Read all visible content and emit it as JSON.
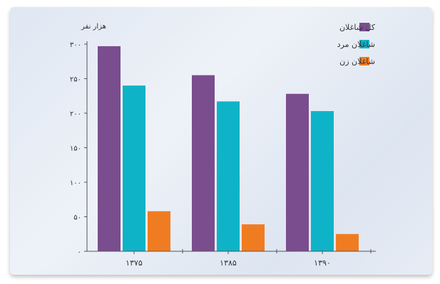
{
  "chart_data": {
    "type": "bar",
    "title": "",
    "xlabel": "",
    "ylabel": "هزار نفر",
    "categories": [
      "۱۳۷۵",
      "۱۳۸۵",
      "۱۳۹۰"
    ],
    "yticks": [
      0,
      50,
      100,
      150,
      200,
      250,
      300
    ],
    "ytick_labels": [
      "۰",
      "۵۰",
      "۱۰۰",
      "۱۵۰",
      "۲۰۰",
      "۲۵۰",
      "۳۰۰"
    ],
    "ylim": [
      0,
      300
    ],
    "grid": false,
    "legend": "top-right",
    "series": [
      {
        "name": "کل شاغلان",
        "color": "#7a4d8e",
        "values": [
          297,
          255,
          228
        ]
      },
      {
        "name": "شاغلان مرد",
        "color": "#0fb3c7",
        "values": [
          240,
          217,
          203
        ]
      },
      {
        "name": "شاغلان زن",
        "color": "#f07c22",
        "values": [
          58,
          39,
          25
        ]
      }
    ]
  }
}
